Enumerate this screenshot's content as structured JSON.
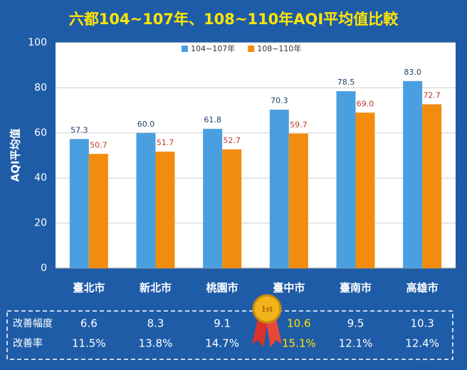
{
  "chart_data": {
    "type": "bar",
    "title": "六都104~107年、108~110年AQI平均值比較",
    "y_label": "AQI平均值",
    "categories": [
      "臺北市",
      "新北市",
      "桃園市",
      "臺中市",
      "臺南市",
      "高雄市"
    ],
    "series": [
      {
        "name": "104~107年",
        "color": "#4a9fe0",
        "values": [
          57.3,
          60.0,
          61.8,
          70.3,
          78.5,
          83.0
        ],
        "value_labels": [
          "57.3",
          "60.0",
          "61.8",
          "70.3",
          "78.5",
          "83.0"
        ],
        "label_color": "#1f3f6e"
      },
      {
        "name": "108~110年",
        "color": "#f28c0f",
        "values": [
          50.7,
          51.7,
          52.7,
          59.7,
          69.0,
          72.7
        ],
        "value_labels": [
          "50.7",
          "51.7",
          "52.7",
          "59.7",
          "69.0",
          "72.7"
        ],
        "label_color": "#c0392b"
      }
    ],
    "ylim": [
      0,
      100
    ],
    "yticks": [
      0,
      20,
      40,
      60,
      80,
      100
    ],
    "grid": true,
    "legend": "top"
  },
  "improvement_table": {
    "rows": [
      {
        "label": "改善幅度",
        "cells": [
          "6.6",
          "8.3",
          "9.1",
          "10.6",
          "9.5",
          "10.3"
        ]
      },
      {
        "label": "改善率",
        "cells": [
          "11.5%",
          "13.8%",
          "14.7%",
          "15.1%",
          "12.1%",
          "12.4%"
        ]
      }
    ],
    "medal": "1st"
  }
}
